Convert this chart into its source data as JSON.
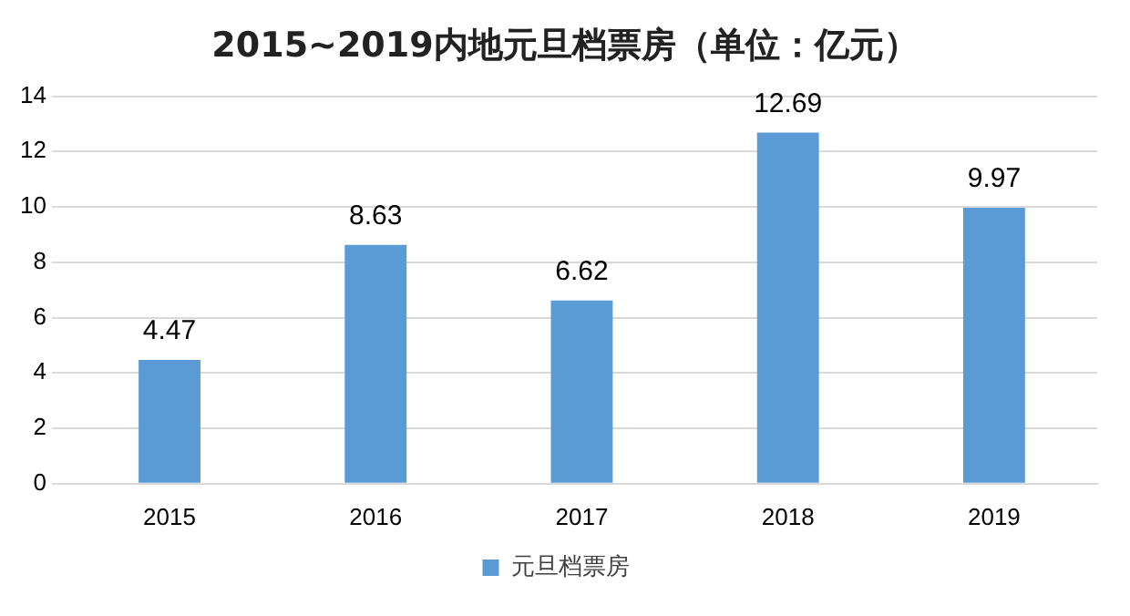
{
  "chart_data": {
    "type": "bar",
    "title": "2015~2019内地元旦档票房（单位：亿元）",
    "categories": [
      "2015",
      "2016",
      "2017",
      "2018",
      "2019"
    ],
    "series": [
      {
        "name": "元旦档票房",
        "color": "#5b9bd5",
        "values": [
          4.47,
          8.63,
          6.62,
          12.69,
          9.97
        ]
      }
    ],
    "ylim": [
      0,
      14
    ],
    "yticks": [
      0,
      2,
      4,
      6,
      8,
      10,
      12,
      14
    ],
    "grid": "y",
    "legend": "bottom",
    "data_labels": true
  }
}
